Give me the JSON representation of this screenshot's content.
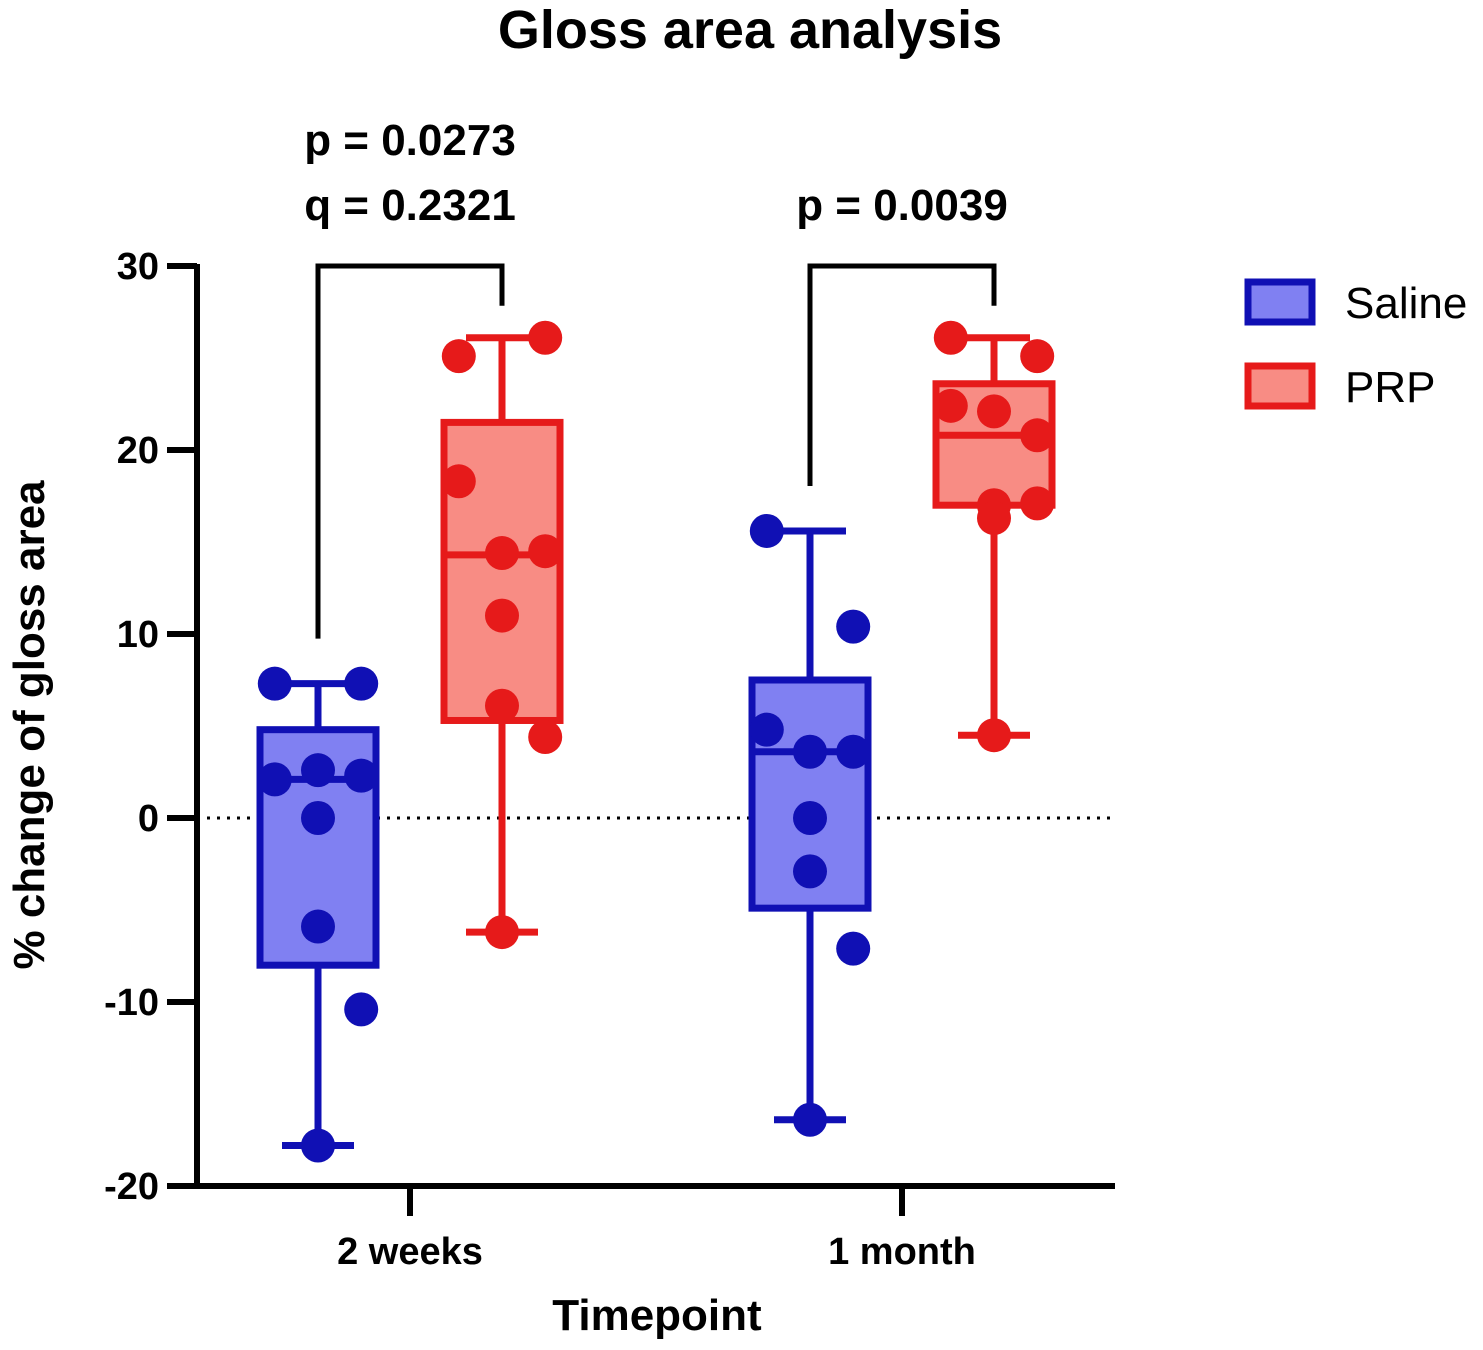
{
  "chart_data": {
    "type": "box",
    "title": "Gloss area analysis",
    "xlabel": "Timepoint",
    "ylabel": "% change of gloss area",
    "ylim": [
      -20,
      30
    ],
    "yticks": [
      30,
      20,
      10,
      0,
      -10,
      -20
    ],
    "categories": [
      "2 weeks",
      "1 month"
    ],
    "reference_line": {
      "y": 0,
      "style": "dotted"
    },
    "legend_position": "right",
    "series": [
      {
        "name": "Saline",
        "stroke": "#1010b4",
        "fill": "#8080f2",
        "boxes": [
          {
            "min": -17.8,
            "q1": -8.0,
            "median": 2.1,
            "q3": 4.8,
            "max": 7.3,
            "points": [
              7.3,
              7.3,
              2.1,
              2.6,
              2.3,
              0.0,
              -5.9,
              -10.4,
              -17.8
            ]
          },
          {
            "min": -16.4,
            "q1": -4.9,
            "median": 3.6,
            "q3": 7.5,
            "max": 15.6,
            "points": [
              15.6,
              10.4,
              4.8,
              3.6,
              3.6,
              0.0,
              -2.9,
              -7.1,
              -16.4
            ]
          }
        ]
      },
      {
        "name": "PRP",
        "stroke": "#e61a1a",
        "fill": "#f88c84",
        "boxes": [
          {
            "min": -6.2,
            "q1": 5.3,
            "median": 14.3,
            "q3": 21.5,
            "max": 26.1,
            "points": [
              25.1,
              26.1,
              18.3,
              14.4,
              14.5,
              11.0,
              6.1,
              4.4,
              -6.2
            ]
          },
          {
            "min": 4.5,
            "q1": 17.0,
            "median": 20.8,
            "q3": 23.6,
            "max": 26.1,
            "points": [
              26.1,
              25.1,
              22.4,
              22.1,
              20.8,
              17.0,
              16.3,
              17.1,
              4.5
            ]
          }
        ]
      }
    ],
    "annotations": [
      {
        "category": "2 weeks",
        "lines": [
          "p = 0.0273",
          "q = 0.2321"
        ]
      },
      {
        "category": "1 month",
        "lines": [
          "p = 0.0039"
        ]
      }
    ]
  }
}
